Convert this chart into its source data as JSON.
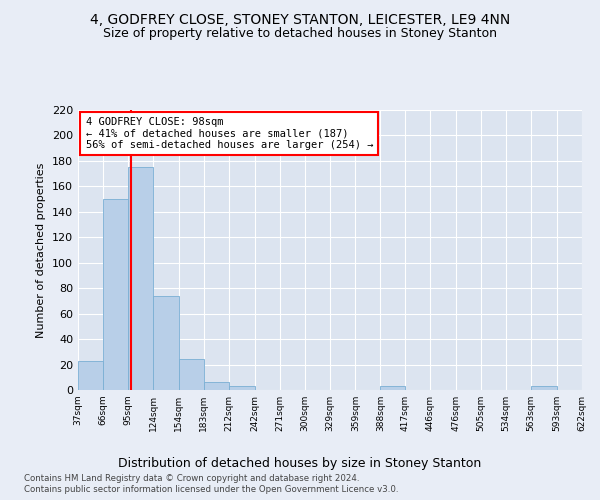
{
  "title": "4, GODFREY CLOSE, STONEY STANTON, LEICESTER, LE9 4NN",
  "subtitle": "Size of property relative to detached houses in Stoney Stanton",
  "xlabel": "Distribution of detached houses by size in Stoney Stanton",
  "ylabel": "Number of detached properties",
  "bar_color": "#b8cfe8",
  "bar_edge_color": "#7aafd4",
  "property_line_color": "red",
  "property_size_sqm": 98,
  "annotation_title": "4 GODFREY CLOSE: 98sqm",
  "annotation_line1": "← 41% of detached houses are smaller (187)",
  "annotation_line2": "56% of semi-detached houses are larger (254) →",
  "bins": [
    37,
    66,
    95,
    124,
    154,
    183,
    212,
    242,
    271,
    300,
    329,
    359,
    388,
    417,
    446,
    476,
    505,
    534,
    563,
    593,
    622
  ],
  "counts": [
    23,
    150,
    175,
    74,
    24,
    6,
    3,
    0,
    0,
    0,
    0,
    0,
    3,
    0,
    0,
    0,
    0,
    0,
    3,
    0
  ],
  "ylim": [
    0,
    220
  ],
  "yticks": [
    0,
    20,
    40,
    60,
    80,
    100,
    120,
    140,
    160,
    180,
    200,
    220
  ],
  "background_color": "#e8edf6",
  "plot_background": "#dce4f0",
  "footnote1": "Contains HM Land Registry data © Crown copyright and database right 2024.",
  "footnote2": "Contains public sector information licensed under the Open Government Licence v3.0.",
  "title_fontsize": 10,
  "subtitle_fontsize": 9
}
